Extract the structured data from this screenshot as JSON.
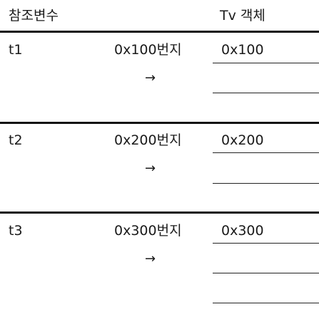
{
  "header": {
    "reference_var": "참조변수",
    "tv_object": "Tv  객체"
  },
  "rows": [
    {
      "name": "t1",
      "address": "0x100번지",
      "arrow": "→",
      "value": "0x100"
    },
    {
      "name": "t2",
      "address": "0x200번지",
      "arrow": "→",
      "value": "0x200"
    },
    {
      "name": "t3",
      "address": "0x300번지",
      "arrow": "→",
      "value": "0x300"
    }
  ],
  "colors": {
    "line": "#111111",
    "text": "#1a1a1a"
  }
}
